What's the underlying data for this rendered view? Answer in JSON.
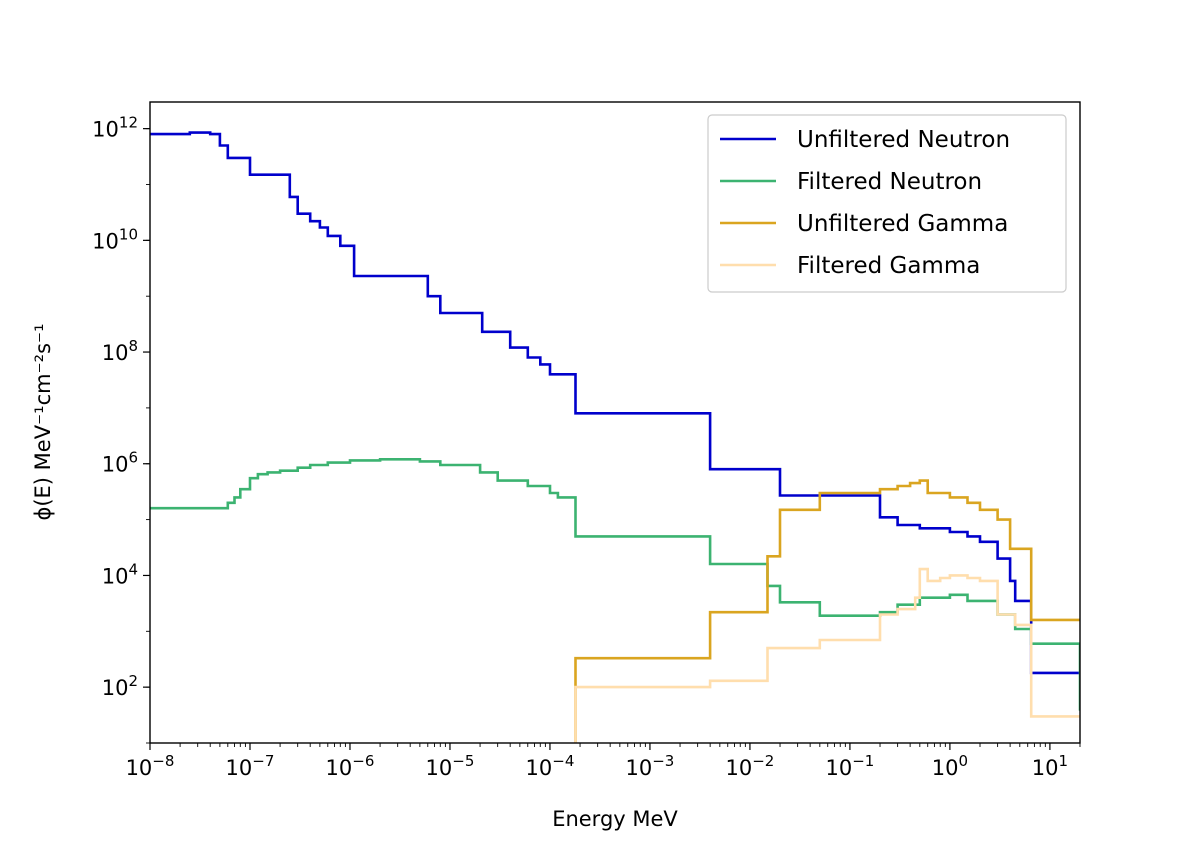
{
  "chart_data": {
    "type": "line",
    "drawstyle": "steps-post",
    "xlabel": "Energy  MeV",
    "ylabel": "ϕ(E)  MeV⁻¹cm⁻²s⁻¹",
    "xscale": "log",
    "yscale": "log",
    "xlim": [
      1e-08,
      20
    ],
    "ylim": [
      10,
      3000000000000.0
    ],
    "xticks": [
      1e-08,
      1e-07,
      1e-06,
      1e-05,
      0.0001,
      0.001,
      0.01,
      0.1,
      1,
      10
    ],
    "xtick_labels": [
      {
        "base": "10",
        "exp": "−8"
      },
      {
        "base": "10",
        "exp": "−7"
      },
      {
        "base": "10",
        "exp": "−6"
      },
      {
        "base": "10",
        "exp": "−5"
      },
      {
        "base": "10",
        "exp": "−4"
      },
      {
        "base": "10",
        "exp": "−3"
      },
      {
        "base": "10",
        "exp": "−2"
      },
      {
        "base": "10",
        "exp": "−1"
      },
      {
        "base": "10",
        "exp": "0"
      },
      {
        "base": "10",
        "exp": "1"
      }
    ],
    "yticks": [
      100.0,
      10000.0,
      1000000.0,
      100000000.0,
      10000000000.0,
      1000000000000.0
    ],
    "ytick_labels": [
      {
        "base": "10",
        "exp": "2"
      },
      {
        "base": "10",
        "exp": "4"
      },
      {
        "base": "10",
        "exp": "6"
      },
      {
        "base": "10",
        "exp": "8"
      },
      {
        "base": "10",
        "exp": "10"
      },
      {
        "base": "10",
        "exp": "12"
      }
    ],
    "grid": false,
    "legend_position": "top-right",
    "series": [
      {
        "name": "Unfiltered Neutron",
        "color": "#0000cc",
        "x": [
          1e-08,
          2e-08,
          2.5e-08,
          4e-08,
          5e-08,
          6e-08,
          7e-08,
          1e-07,
          1.6e-07,
          2.5e-07,
          3e-07,
          4e-07,
          5e-07,
          6e-07,
          8e-07,
          1e-06,
          1.1e-06,
          5e-06,
          6e-06,
          8e-06,
          2e-05,
          2.1e-05,
          3.5e-05,
          4e-05,
          6e-05,
          8e-05,
          0.0001,
          0.00018,
          0.0025,
          0.004,
          0.015,
          0.02,
          0.05,
          0.2,
          0.3,
          0.5,
          1,
          1.5,
          2,
          3,
          4,
          4.5,
          6.5,
          20
        ],
        "y": [
          800000000000.0,
          800000000000.0,
          850000000000.0,
          800000000000.0,
          500000000000.0,
          300000000000.0,
          300000000000.0,
          150000000000.0,
          150000000000.0,
          60000000000.0,
          30000000000.0,
          22000000000.0,
          17000000000.0,
          12000000000.0,
          8000000000.0,
          8000000000.0,
          2300000000.0,
          2300000000.0,
          1000000000.0,
          500000000.0,
          500000000.0,
          230000000.0,
          230000000.0,
          120000000.0,
          80000000.0,
          60000000.0,
          40000000.0,
          8000000.0,
          8000000.0,
          800000.0,
          800000.0,
          270000.0,
          270000.0,
          110000.0,
          80000.0,
          70000.0,
          60000.0,
          50000.0,
          40000.0,
          20000.0,
          8000.0,
          3500.0,
          180,
          180
        ]
      },
      {
        "name": "Filtered Neutron",
        "color": "#3cb371",
        "x": [
          1e-08,
          5e-08,
          6e-08,
          7e-08,
          8e-08,
          1e-07,
          1.2e-07,
          1.5e-07,
          2e-07,
          3e-07,
          4e-07,
          6e-07,
          1e-06,
          2e-06,
          5e-06,
          8e-06,
          2e-05,
          3e-05,
          6e-05,
          0.0001,
          0.00012,
          0.00018,
          0.0025,
          0.004,
          0.015,
          0.02,
          0.05,
          0.2,
          0.3,
          0.5,
          1,
          1.5,
          3,
          4.5,
          6.5,
          20
        ],
        "y": [
          160000.0,
          160000.0,
          200000.0,
          250000.0,
          350000.0,
          550000.0,
          650000.0,
          700000.0,
          750000.0,
          850000.0,
          950000.0,
          1050000.0,
          1150000.0,
          1200000.0,
          1100000.0,
          950000.0,
          700000.0,
          500000.0,
          400000.0,
          300000.0,
          250000.0,
          50000.0,
          50000.0,
          16000.0,
          6500.0,
          3300.0,
          1900.0,
          2200.0,
          3000.0,
          4000.0,
          4500.0,
          3500.0,
          2000.0,
          1100.0,
          600,
          38
        ]
      },
      {
        "name": "Unfiltered Gamma",
        "color": "#daa520",
        "x": [
          0.00018,
          0.0025,
          0.004,
          0.015,
          0.02,
          0.05,
          0.2,
          0.3,
          0.4,
          0.5,
          0.6,
          1,
          1.5,
          2,
          3,
          4,
          4.5,
          6.5,
          20
        ],
        "y": [
          330,
          330,
          2200.0,
          22000.0,
          150000.0,
          300000.0,
          350000.0,
          400000.0,
          450000.0,
          500000.0,
          300000.0,
          250000.0,
          200000.0,
          150000.0,
          100000.0,
          30000.0,
          30000.0,
          1600.0,
          1600.0
        ],
        "x_start_note": "drawn from ylim bottom at first x"
      },
      {
        "name": "Filtered Gamma",
        "color": "#ffdead",
        "x": [
          0.00018,
          0.0025,
          0.004,
          0.015,
          0.02,
          0.05,
          0.2,
          0.3,
          0.45,
          0.5,
          0.6,
          0.8,
          1,
          1.5,
          2,
          3,
          4.5,
          6.5,
          20
        ],
        "y": [
          100,
          100,
          130,
          500,
          500,
          700,
          2000.0,
          2500.0,
          4000.0,
          13000.0,
          8000.0,
          9000.0,
          10000.0,
          9000.0,
          8000.0,
          2000.0,
          1300.0,
          30,
          30
        ]
      }
    ]
  }
}
